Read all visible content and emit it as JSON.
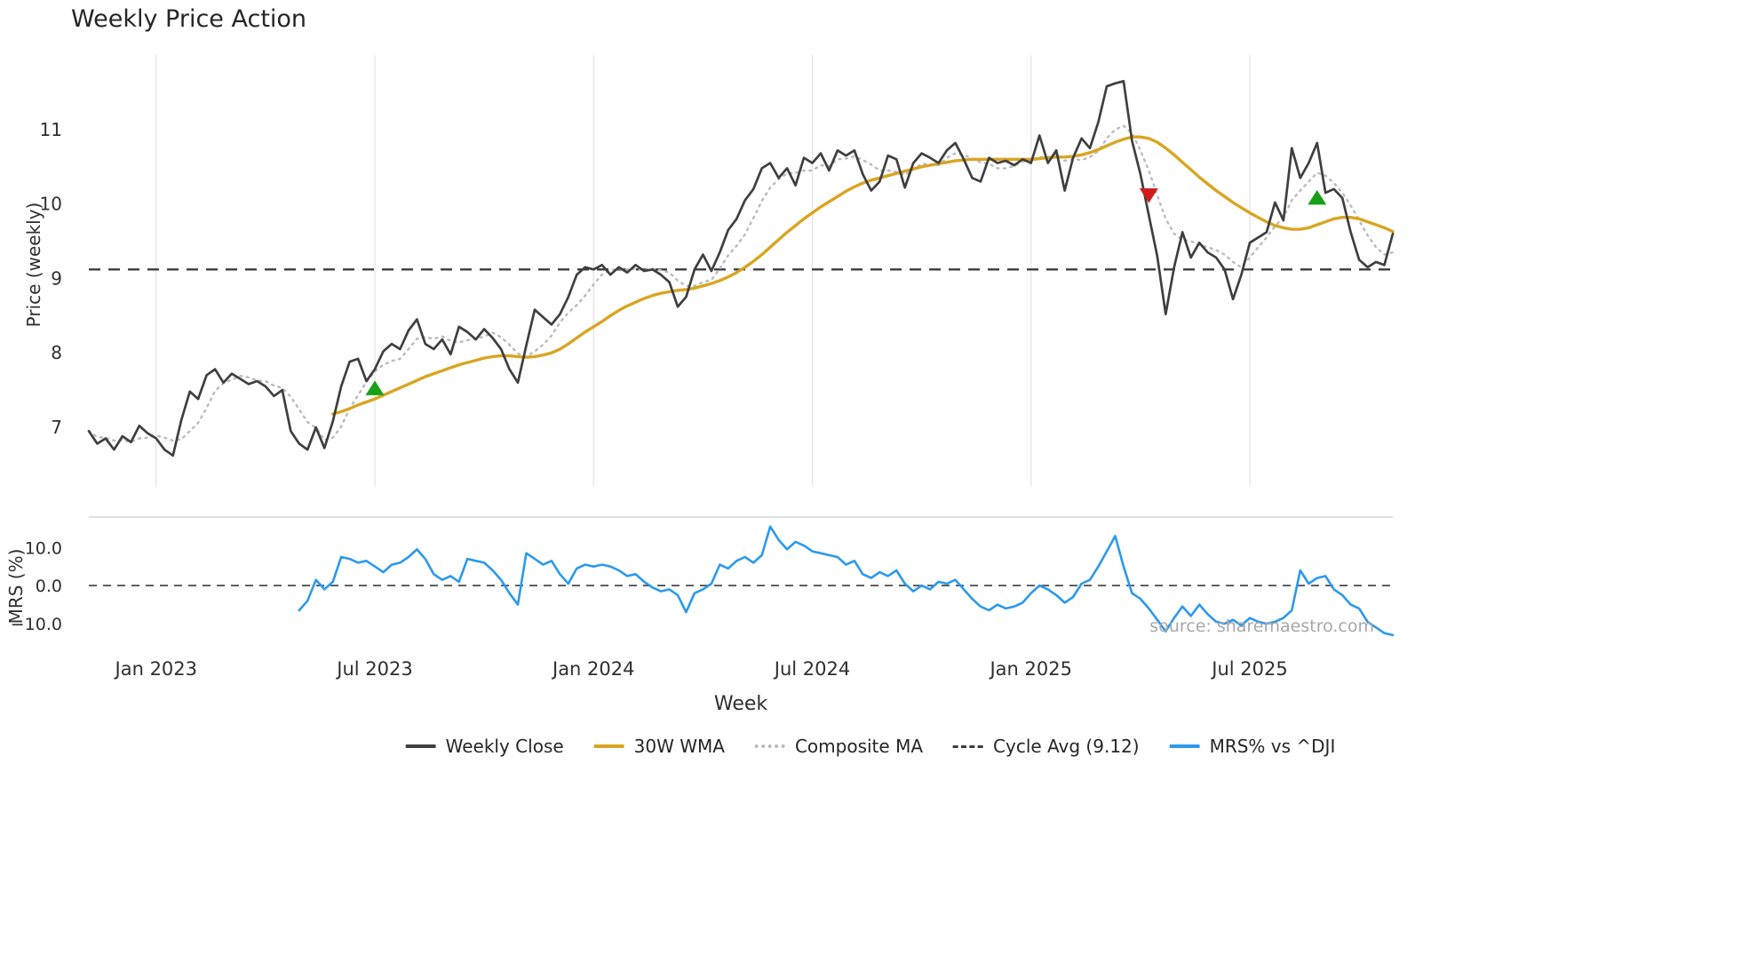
{
  "source_text": "source: sharemaestro.com",
  "chart_data": {
    "type": "line",
    "title": "Weekly Price Action",
    "xlabel": "Week",
    "ylabel": "Price (weekly)",
    "ylabel2": "MRS (%)",
    "weeks_total": 156,
    "price_ticks": [
      7,
      8,
      9,
      10,
      11
    ],
    "mrs_ticks": [
      10.0,
      0.0,
      -10.0
    ],
    "x_ticks": [
      {
        "week": 8,
        "label": "Jan 2023"
      },
      {
        "week": 34,
        "label": "Jul 2023"
      },
      {
        "week": 60,
        "label": "Jan 2024"
      },
      {
        "week": 86,
        "label": "Jul 2024"
      },
      {
        "week": 112,
        "label": "Jan 2025"
      },
      {
        "week": 138,
        "label": "Jul 2025"
      }
    ],
    "price_axis_range": [
      6.2,
      12.0
    ],
    "mrs_axis_range": [
      -17,
      18
    ],
    "cycle_avg": {
      "label": "Cycle Avg (9.12)",
      "value": 9.12,
      "color": "#3c3c3c"
    },
    "mrs_zero_line": 0,
    "colors": {
      "weekly_close": "#3f3f3f",
      "wma30": "#d9a521",
      "composite": "#bbbbbb",
      "mrs": "#2b99ee",
      "buy": "#18a018",
      "sell": "#cf1d1d",
      "grid": "#e7e7e7",
      "panel_border": "#cfcfcf"
    },
    "series": [
      {
        "name": "Weekly Close",
        "panel": "price",
        "style": "solid",
        "color": "#3f3f3f",
        "width": 2.7,
        "values": [
          6.95,
          6.78,
          6.85,
          6.7,
          6.88,
          6.8,
          7.02,
          6.92,
          6.85,
          6.7,
          6.62,
          7.1,
          7.48,
          7.38,
          7.7,
          7.78,
          7.6,
          7.72,
          7.65,
          7.58,
          7.62,
          7.55,
          7.42,
          7.5,
          6.95,
          6.78,
          6.7,
          7.0,
          6.72,
          7.08,
          7.55,
          7.88,
          7.92,
          7.62,
          7.78,
          8.02,
          8.12,
          8.05,
          8.3,
          8.45,
          8.12,
          8.05,
          8.18,
          7.98,
          8.35,
          8.28,
          8.18,
          8.32,
          8.2,
          8.05,
          7.78,
          7.6,
          8.1,
          8.58,
          8.48,
          8.38,
          8.52,
          8.75,
          9.05,
          9.15,
          9.12,
          9.18,
          9.05,
          9.15,
          9.08,
          9.18,
          9.1,
          9.12,
          9.05,
          8.95,
          8.62,
          8.75,
          9.12,
          9.32,
          9.1,
          9.35,
          9.65,
          9.8,
          10.05,
          10.2,
          10.48,
          10.55,
          10.35,
          10.48,
          10.25,
          10.62,
          10.55,
          10.68,
          10.45,
          10.72,
          10.65,
          10.72,
          10.4,
          10.18,
          10.3,
          10.65,
          10.6,
          10.22,
          10.55,
          10.68,
          10.62,
          10.55,
          10.72,
          10.82,
          10.6,
          10.35,
          10.3,
          10.62,
          10.55,
          10.58,
          10.52,
          10.6,
          10.55,
          10.92,
          10.55,
          10.72,
          10.18,
          10.62,
          10.88,
          10.75,
          11.1,
          11.58,
          11.62,
          11.65,
          10.85,
          10.4,
          9.85,
          9.3,
          8.52,
          9.15,
          9.62,
          9.28,
          9.48,
          9.35,
          9.28,
          9.12,
          8.72,
          9.05,
          9.48,
          9.55,
          9.62,
          10.02,
          9.78,
          10.75,
          10.35,
          10.55,
          10.82,
          10.15,
          10.2,
          10.08,
          9.62,
          9.25,
          9.15,
          9.22,
          9.18,
          9.6
        ]
      },
      {
        "name": "30W WMA",
        "panel": "price",
        "style": "solid",
        "color": "#d9a521",
        "width": 3.4,
        "values": [
          null,
          null,
          null,
          null,
          null,
          null,
          null,
          null,
          null,
          null,
          null,
          null,
          null,
          null,
          null,
          null,
          null,
          null,
          null,
          null,
          null,
          null,
          null,
          null,
          null,
          null,
          null,
          null,
          null,
          7.18,
          7.21,
          7.25,
          7.3,
          7.34,
          7.38,
          7.43,
          7.48,
          7.53,
          7.58,
          7.63,
          7.68,
          7.72,
          7.76,
          7.8,
          7.84,
          7.87,
          7.9,
          7.93,
          7.95,
          7.96,
          7.96,
          7.95,
          7.94,
          7.95,
          7.97,
          8.0,
          8.05,
          8.12,
          8.2,
          8.28,
          8.35,
          8.42,
          8.5,
          8.57,
          8.63,
          8.68,
          8.73,
          8.77,
          8.8,
          8.82,
          8.84,
          8.85,
          8.87,
          8.9,
          8.93,
          8.97,
          9.02,
          9.08,
          9.15,
          9.23,
          9.32,
          9.42,
          9.52,
          9.62,
          9.71,
          9.8,
          9.88,
          9.96,
          10.03,
          10.1,
          10.17,
          10.23,
          10.28,
          10.32,
          10.35,
          10.38,
          10.41,
          10.44,
          10.47,
          10.5,
          10.52,
          10.54,
          10.56,
          10.58,
          10.59,
          10.6,
          10.6,
          10.6,
          10.6,
          10.6,
          10.6,
          10.6,
          10.6,
          10.61,
          10.62,
          10.63,
          10.63,
          10.64,
          10.66,
          10.69,
          10.73,
          10.78,
          10.83,
          10.87,
          10.9,
          10.9,
          10.88,
          10.83,
          10.75,
          10.66,
          10.56,
          10.46,
          10.36,
          10.27,
          10.18,
          10.1,
          10.02,
          9.95,
          9.88,
          9.82,
          9.76,
          9.71,
          9.68,
          9.66,
          9.66,
          9.68,
          9.72,
          9.76,
          9.8,
          9.82,
          9.82,
          9.8,
          9.76,
          9.72,
          9.68,
          9.63
        ]
      },
      {
        "name": "Composite MA",
        "panel": "price",
        "style": "dotted",
        "color": "#bbbbbb",
        "width": 2.4,
        "values": [
          6.95,
          6.87,
          6.86,
          6.82,
          6.83,
          6.8,
          6.85,
          6.86,
          6.89,
          6.86,
          6.82,
          6.84,
          6.95,
          7.06,
          7.26,
          7.49,
          7.59,
          7.64,
          7.69,
          7.67,
          7.63,
          7.62,
          7.56,
          7.53,
          7.41,
          7.24,
          7.07,
          6.99,
          6.83,
          6.86,
          7.01,
          7.25,
          7.43,
          7.61,
          7.75,
          7.84,
          7.89,
          7.92,
          8.05,
          8.19,
          8.21,
          8.19,
          8.22,
          8.16,
          8.14,
          8.17,
          8.19,
          8.22,
          8.27,
          8.21,
          8.11,
          7.99,
          7.95,
          8.02,
          8.11,
          8.23,
          8.41,
          8.54,
          8.64,
          8.77,
          8.92,
          9.05,
          9.11,
          9.13,
          9.12,
          9.13,
          9.11,
          9.13,
          9.11,
          9.08,
          8.97,
          8.9,
          8.9,
          8.95,
          8.98,
          9.13,
          9.31,
          9.44,
          9.59,
          9.81,
          10.04,
          10.22,
          10.33,
          10.41,
          10.42,
          10.45,
          10.45,
          10.52,
          10.51,
          10.6,
          10.61,
          10.64,
          10.59,
          10.53,
          10.45,
          10.45,
          10.43,
          10.39,
          10.46,
          10.54,
          10.53,
          10.52,
          10.62,
          10.68,
          10.66,
          10.61,
          10.56,
          10.54,
          10.48,
          10.48,
          10.51,
          10.57,
          10.56,
          10.63,
          10.63,
          10.67,
          10.58,
          10.6,
          10.59,
          10.63,
          10.71,
          10.88,
          11.0,
          11.05,
          10.95,
          10.72,
          10.45,
          10.12,
          9.8,
          9.6,
          9.52,
          9.5,
          9.45,
          9.42,
          9.38,
          9.32,
          9.22,
          9.15,
          9.28,
          9.42,
          9.55,
          9.7,
          9.82,
          10.05,
          10.18,
          10.3,
          10.42,
          10.38,
          10.28,
          10.15,
          9.98,
          9.78,
          9.58,
          9.42,
          9.32,
          9.35
        ]
      },
      {
        "name": "MRS% vs ^DJI",
        "panel": "mrs",
        "style": "solid",
        "color": "#2b99ee",
        "width": 2.6,
        "values": [
          null,
          null,
          null,
          null,
          null,
          null,
          null,
          null,
          null,
          null,
          null,
          null,
          null,
          null,
          null,
          null,
          null,
          null,
          null,
          null,
          null,
          null,
          null,
          null,
          null,
          -6.5,
          -4.0,
          1.5,
          -1.0,
          1.0,
          7.5,
          7.0,
          6.0,
          6.5,
          5.0,
          3.5,
          5.5,
          6.0,
          7.5,
          9.5,
          7.0,
          3.0,
          1.5,
          2.5,
          1.0,
          7.0,
          6.5,
          6.0,
          4.0,
          1.5,
          -2.0,
          -5.0,
          8.5,
          7.0,
          5.5,
          6.5,
          3.0,
          0.5,
          4.5,
          5.5,
          5.0,
          5.5,
          5.0,
          4.0,
          2.5,
          3.0,
          1.0,
          -0.5,
          -1.5,
          -1.0,
          -2.5,
          -7.0,
          -2.0,
          -1.0,
          0.5,
          5.5,
          4.5,
          6.5,
          7.5,
          6.0,
          8.0,
          15.5,
          12.0,
          9.5,
          11.5,
          10.5,
          9.0,
          8.5,
          8.0,
          7.5,
          5.5,
          6.5,
          3.0,
          2.0,
          3.5,
          2.5,
          4.0,
          0.5,
          -1.5,
          0.0,
          -1.0,
          1.0,
          0.5,
          1.5,
          -1.0,
          -3.5,
          -5.5,
          -6.5,
          -5.0,
          -6.0,
          -5.5,
          -4.5,
          -2.0,
          0.0,
          -1.0,
          -2.5,
          -4.5,
          -3.0,
          0.5,
          1.5,
          5.0,
          9.0,
          13.0,
          5.0,
          -2.0,
          -3.5,
          -6.0,
          -9.0,
          -12.0,
          -8.5,
          -5.5,
          -8.0,
          -5.0,
          -7.5,
          -9.5,
          -10.0,
          -9.0,
          -10.5,
          -8.5,
          -9.5,
          -10.0,
          -9.5,
          -8.5,
          -6.5,
          4.0,
          0.5,
          2.0,
          2.5,
          -1.0,
          -2.5,
          -5.0,
          -6.0,
          -9.5,
          -11.0,
          -12.5,
          -13.0
        ]
      }
    ],
    "markers": [
      {
        "week": 34,
        "price": 7.52,
        "type": "buy",
        "color": "#18a018"
      },
      {
        "week": 126,
        "price": 10.12,
        "type": "sell",
        "color": "#cf1d1d"
      },
      {
        "week": 146,
        "price": 10.08,
        "type": "buy",
        "color": "#18a018"
      }
    ],
    "legend": [
      {
        "label": "Weekly Close",
        "color": "#3f3f3f",
        "style": "solid"
      },
      {
        "label": "30W WMA",
        "color": "#d9a521",
        "style": "solid"
      },
      {
        "label": "Composite MA",
        "color": "#bbbbbb",
        "style": "dotted"
      },
      {
        "label": "Cycle Avg (9.12)",
        "color": "#3c3c3c",
        "style": "dashed"
      },
      {
        "label": "MRS% vs ^DJI",
        "color": "#2b99ee",
        "style": "solid"
      }
    ]
  }
}
